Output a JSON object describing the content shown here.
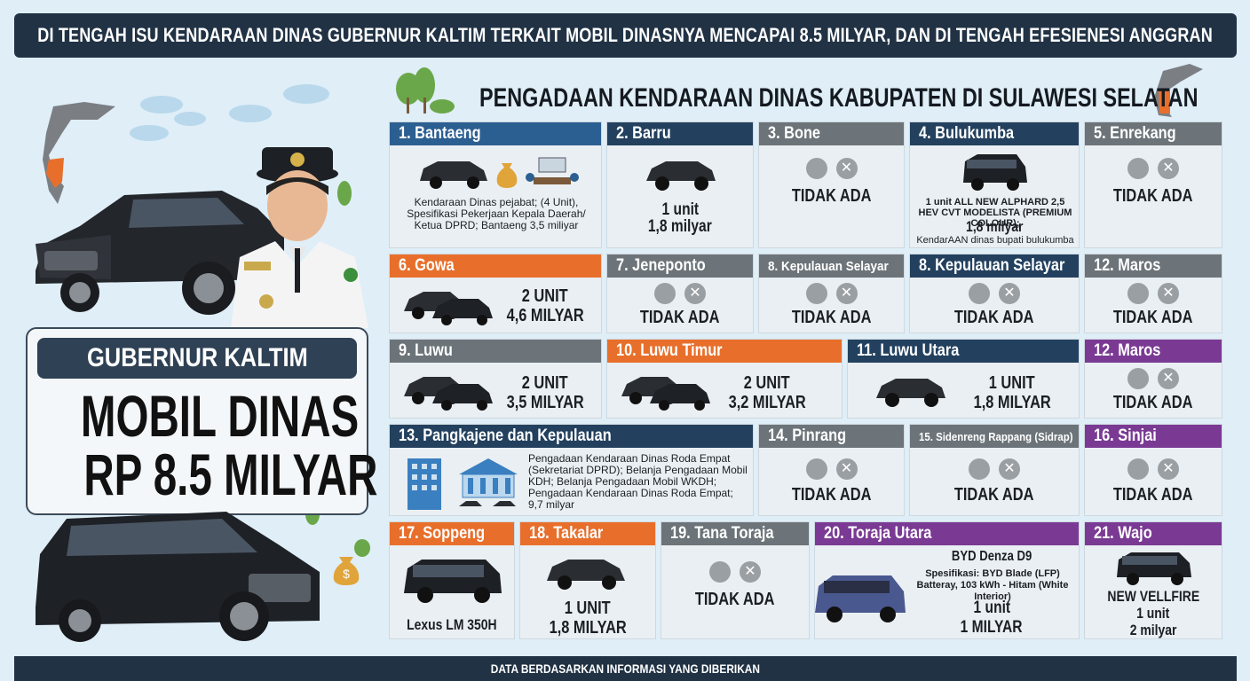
{
  "banner_top": "DI TENGAH ISU KENDARAAN DINAS GUBERNUR KALTIM TERKAIT MOBIL DINASNYA MENCAPAI 8.5 MILYAR, DAN DI TENGAH EFESIENESI ANGGRAN",
  "section_title": "PENGADAAN KENDARAAN DINAS KABUPATEN DI SULAWESI SELATAN",
  "left_panel": {
    "label": "GUBERNUR KALTIM",
    "headline_line1": "MOBIL DINAS",
    "headline_line2": "RP 8.5 MILYAR"
  },
  "none_label": "TIDAK ADA",
  "colors": {
    "banner": "#213244",
    "blue": "#2c5f91",
    "navy": "#23415f",
    "gray": "#6c7479",
    "orange": "#e86f2b",
    "purple": "#7a3a94"
  },
  "regions": {
    "bantaeng": {
      "name": "1. Bantaeng",
      "desc": "Kendaraan Dinas pejabat; (4 Unit), Spesifikasi Pekerjaan Kepala Daerah/ Ketua DPRD; Bantaeng 3,5 miliyar"
    },
    "barru": {
      "name": "2. Barru",
      "line1": "1 unit",
      "line2": "1,8 milyar"
    },
    "bone": {
      "name": "3. Bone"
    },
    "bulukumba": {
      "name": "4. Bulukumba",
      "desc": "1 unit ALL NEW ALPHARD 2,5 HEV CVT MODELISTA (PREMIUM COLOUR);",
      "amount": "1,8 milyar",
      "note": "KendarAAN dinas bupati bulukumba"
    },
    "enrekang": {
      "name": "5. Enrekang"
    },
    "gowa": {
      "name": "6. Gowa",
      "line1": "2 UNIT",
      "line2": "4,6 MILYAR"
    },
    "jeneponto": {
      "name": "7. Jeneponto"
    },
    "selayar_a": {
      "name": "8. Kepulauan Selayar"
    },
    "selayar_b": {
      "name": "8. Kepulauan Selayar"
    },
    "maros_a": {
      "name": "12. Maros"
    },
    "luwu": {
      "name": "9. Luwu",
      "line1": "2 UNIT",
      "line2": "3,5 MILYAR"
    },
    "luwu_timur": {
      "name": "10. Luwu Timur",
      "line1": "2 UNIT",
      "line2": "3,2 MILYAR"
    },
    "luwu_utara": {
      "name": "11. Luwu Utara",
      "line1": "1 UNIT",
      "line2": "1,8 MILYAR"
    },
    "maros_b": {
      "name": "12. Maros"
    },
    "pangkajene": {
      "name": "13. Pangkajene dan Kepulauan",
      "desc": "Pengadaan Kendaraan Dinas Roda Empat (Sekretariat DPRD); Belanja Pengadaan Mobil KDH; Belanja Pengadaan Mobil WKDH; Pengadaan Kendaraan Dinas Roda Empat; 9,7 milyar"
    },
    "pinrang": {
      "name": "14. Pinrang"
    },
    "sidrap": {
      "name": "15. Sidenreng Rappang (Sidrap)"
    },
    "sinjai": {
      "name": "16. Sinjai"
    },
    "soppeng": {
      "name": "17. Soppeng",
      "car": "Lexus LM 350H"
    },
    "takalar": {
      "name": "18. Takalar",
      "line1": "1 UNIT",
      "line2": "1,8 MILYAR"
    },
    "tana_toraja": {
      "name": "19. Tana Toraja"
    },
    "toraja_utara": {
      "name": "20. Toraja Utara",
      "car": "BYD Denza D9",
      "spec": "Spesifikasi: BYD Blade (LFP) Batteray, 103 kWh - Hitam (White Interior)",
      "line1": "1 unit",
      "line2": "1 MILYAR"
    },
    "wajo": {
      "name": "21. Wajo",
      "car": "NEW VELLFIRE",
      "line1": "1 unit",
      "line2": "2 milyar"
    }
  },
  "banner_bottom": "DATA BERDASARKAN INFORMASI YANG DIBERIKAN"
}
